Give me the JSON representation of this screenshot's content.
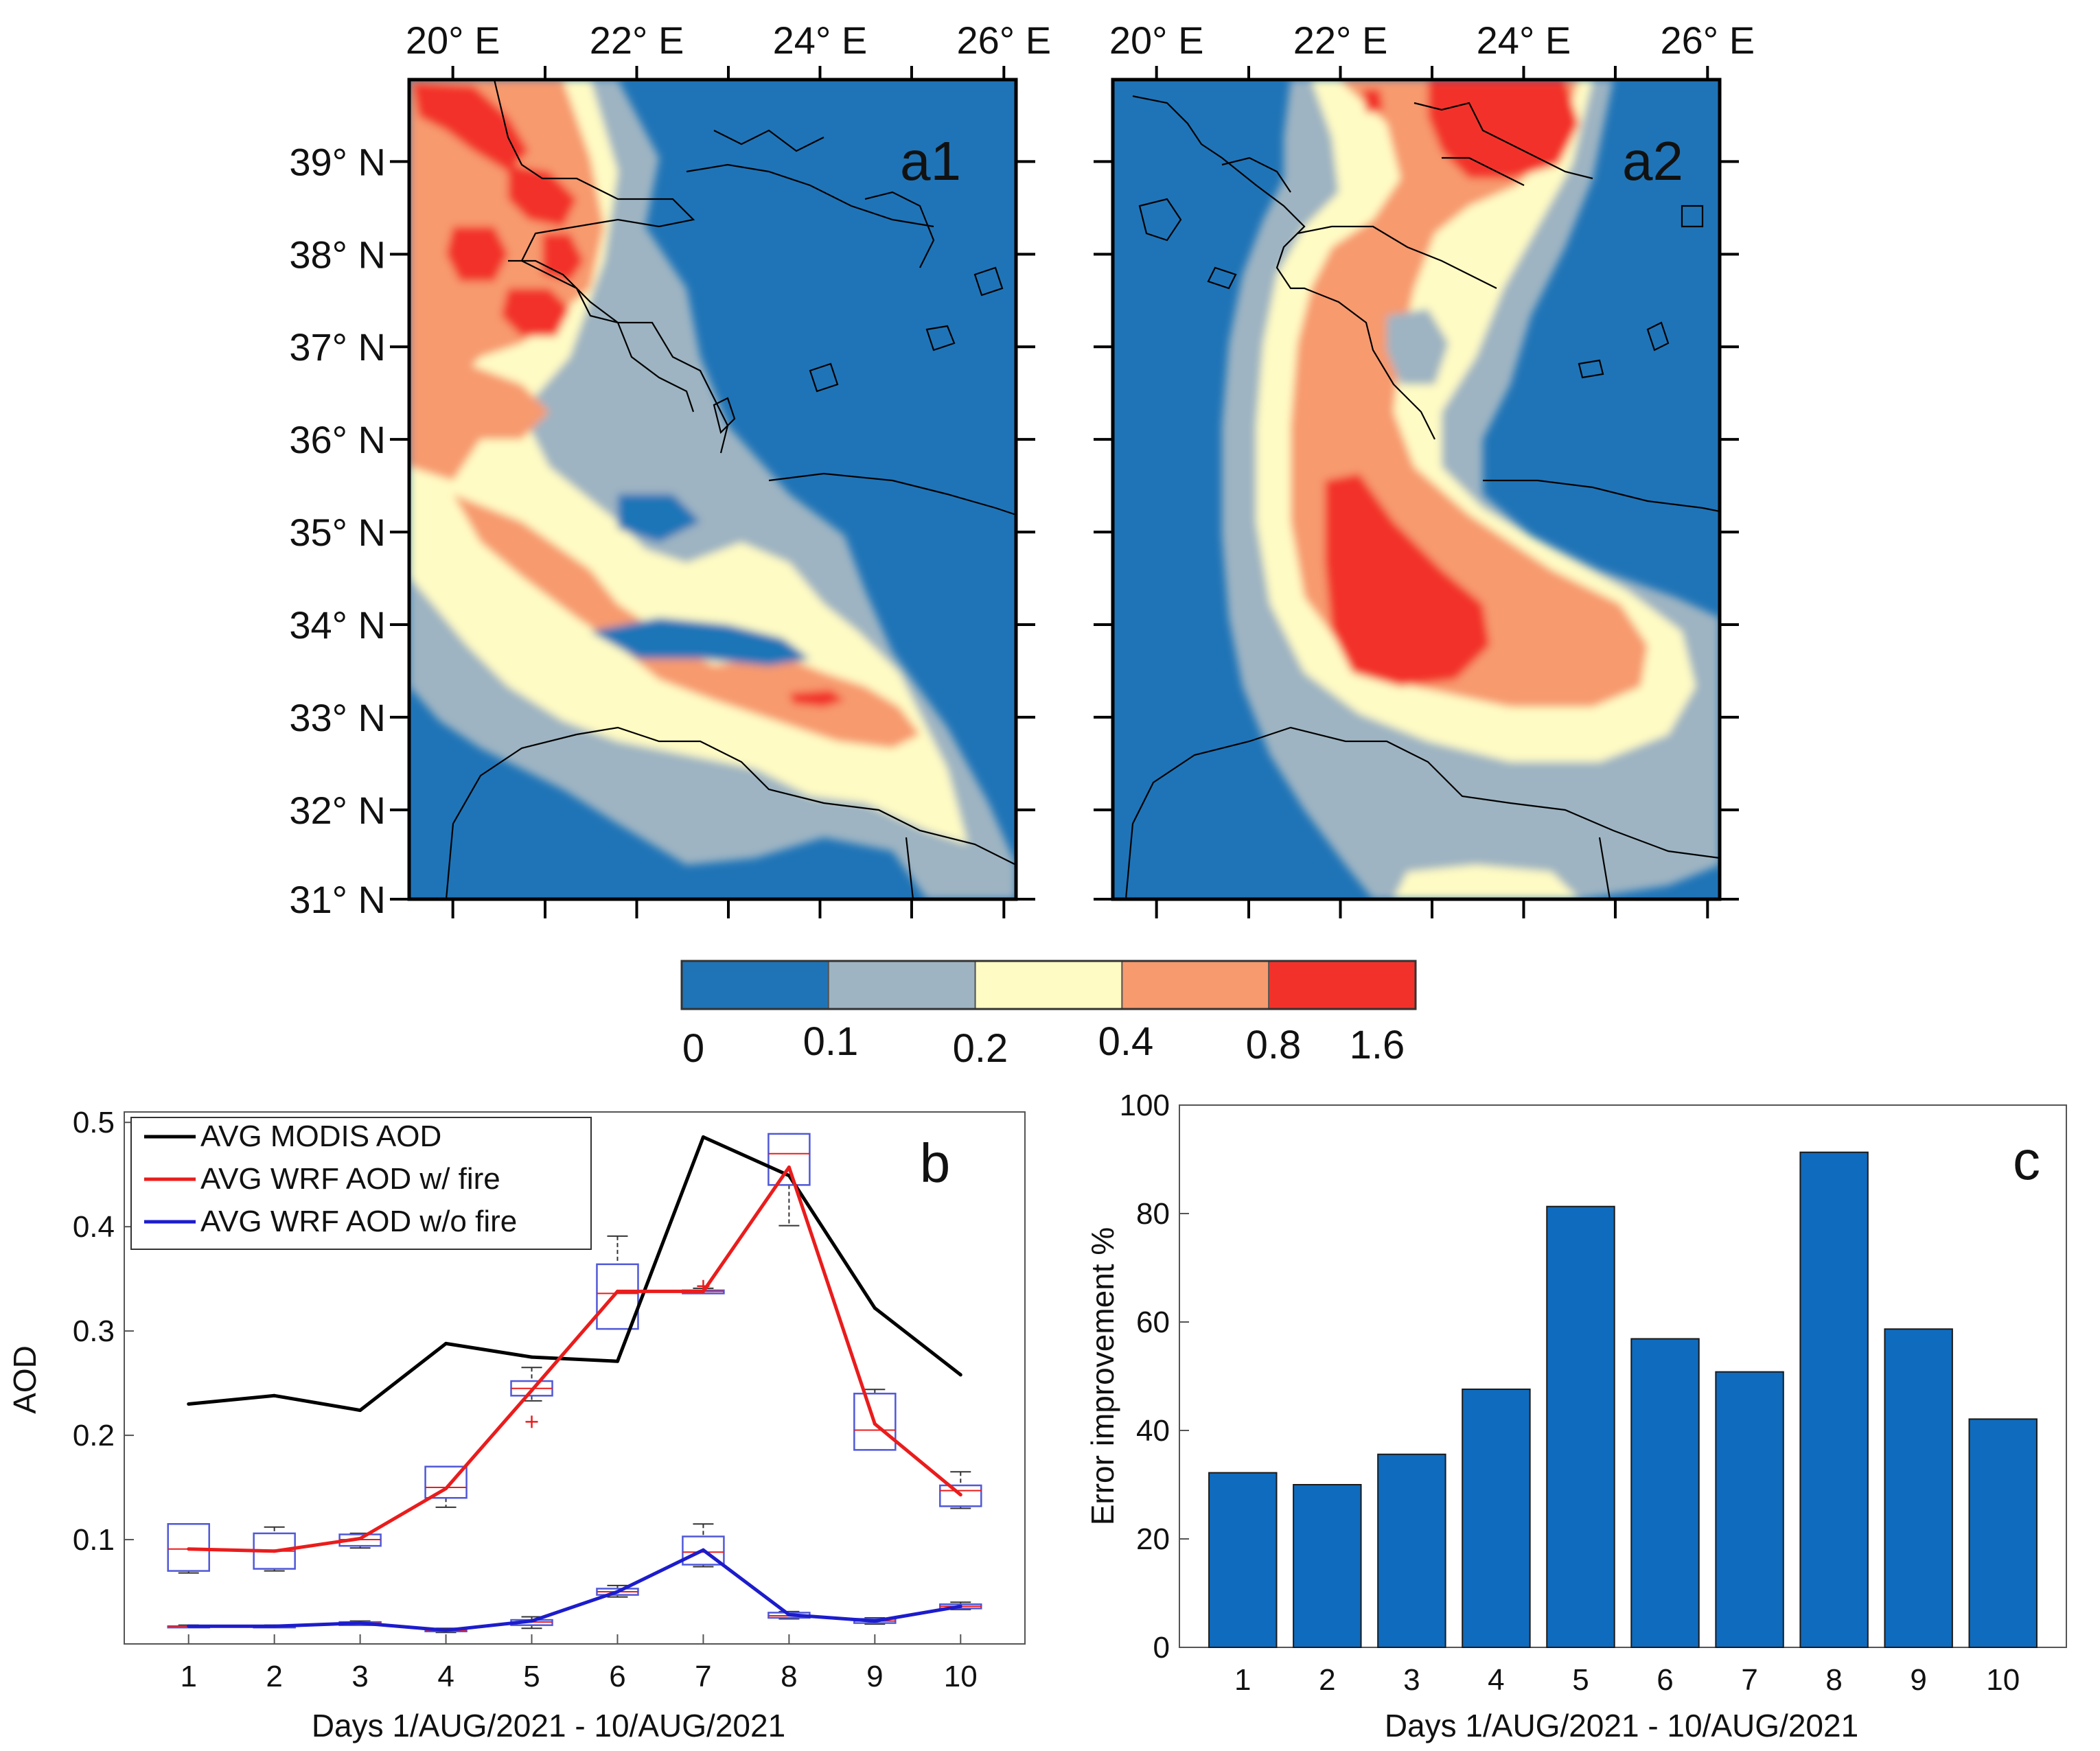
{
  "colors": {
    "bin0": "#1f74b7",
    "bin1": "#9eb4c2",
    "bin2": "#fffbc4",
    "bin3": "#f79a6e",
    "bin4": "#f2322a",
    "bar": "#0f6bbd",
    "modis": "#000000",
    "wrf_fire": "#ea1c1c",
    "wrf_nofire": "#1c1ccc",
    "box": "#4f58d8",
    "median": "#ea1c1c",
    "coast": "#000000"
  },
  "maps": {
    "lon_ticks": [
      "20° E",
      "22° E",
      "24° E",
      "26° E"
    ],
    "lat_ticks": [
      "39° N",
      "38° N",
      "37° N",
      "36° N",
      "35° N",
      "34° N",
      "33° N",
      "32° N",
      "31° N"
    ],
    "panels": [
      {
        "label": "a1",
        "subject": "MODIS AOD"
      },
      {
        "label": "a2",
        "subject": "WRF AOD w/ fire"
      }
    ]
  },
  "colorbar": {
    "tick_labels": [
      "0",
      "0.1",
      "0.2",
      "0.4",
      "0.8",
      "1.6"
    ],
    "bins": [
      [
        0,
        0.1
      ],
      [
        0.1,
        0.2
      ],
      [
        0.2,
        0.4
      ],
      [
        0.4,
        0.8
      ],
      [
        0.8,
        1.6
      ]
    ]
  },
  "chart_data": [
    {
      "id": "b",
      "panel_label": "b",
      "type": "line",
      "title": "",
      "xlabel": "Days 1/AUG/2021 - 10/AUG/2021",
      "ylabel": "AOD",
      "x": [
        1,
        2,
        3,
        4,
        5,
        6,
        7,
        8,
        9,
        10
      ],
      "xticks": [
        "1",
        "2",
        "3",
        "4",
        "5",
        "6",
        "7",
        "8",
        "9",
        "10"
      ],
      "ylim": [
        0,
        0.51
      ],
      "yticks": [
        "0.1",
        "0.2",
        "0.3",
        "0.4",
        "0.5"
      ],
      "legend_position": "top-left",
      "series": [
        {
          "name": "AVG MODIS AOD",
          "color_key": "modis",
          "values": [
            0.23,
            0.238,
            0.224,
            0.288,
            0.275,
            0.271,
            0.486,
            0.449,
            0.322,
            0.258
          ]
        },
        {
          "name": "AVG WRF AOD w/ fire",
          "color_key": "wrf_fire",
          "values": [
            0.091,
            0.089,
            0.101,
            0.149,
            0.243,
            0.338,
            0.338,
            0.457,
            0.211,
            0.143
          ]
        },
        {
          "name": "AVG WRF AOD w/o fire",
          "color_key": "wrf_nofire",
          "values": [
            0.017,
            0.017,
            0.02,
            0.013,
            0.022,
            0.05,
            0.09,
            0.028,
            0.022,
            0.036
          ]
        }
      ],
      "boxplots": [
        {
          "x": 1,
          "min": 0.068,
          "q1": 0.07,
          "median": 0.091,
          "q3": 0.115,
          "max": 0.115
        },
        {
          "x": 2,
          "min": 0.07,
          "q1": 0.072,
          "median": 0.089,
          "q3": 0.106,
          "max": 0.112
        },
        {
          "x": 3,
          "min": 0.092,
          "q1": 0.094,
          "median": 0.1,
          "q3": 0.105,
          "max": 0.106
        },
        {
          "x": 4,
          "min": 0.131,
          "q1": 0.14,
          "median": 0.15,
          "q3": 0.17,
          "max": 0.17
        },
        {
          "x": 5,
          "min": 0.233,
          "q1": 0.238,
          "median": 0.245,
          "q3": 0.252,
          "max": 0.265
        },
        {
          "x": 6,
          "min": 0.302,
          "q1": 0.302,
          "median": 0.336,
          "q3": 0.364,
          "max": 0.391
        },
        {
          "x": 7,
          "min": 0.336,
          "q1": 0.336,
          "median": 0.338,
          "q3": 0.339,
          "max": 0.341
        },
        {
          "x": 8,
          "min": 0.401,
          "q1": 0.44,
          "median": 0.47,
          "q3": 0.489,
          "max": 0.489
        },
        {
          "x": 9,
          "min": 0.186,
          "q1": 0.186,
          "median": 0.205,
          "q3": 0.24,
          "max": 0.244
        },
        {
          "x": 10,
          "min": 0.13,
          "q1": 0.132,
          "median": 0.147,
          "q3": 0.152,
          "max": 0.165
        },
        {
          "x": 1,
          "min": 0.016,
          "q1": 0.016,
          "median": 0.017,
          "q3": 0.017,
          "max": 0.018
        },
        {
          "x": 2,
          "min": 0.016,
          "q1": 0.016,
          "median": 0.017,
          "q3": 0.017,
          "max": 0.018
        },
        {
          "x": 3,
          "min": 0.018,
          "q1": 0.018,
          "median": 0.02,
          "q3": 0.021,
          "max": 0.022
        },
        {
          "x": 4,
          "min": 0.011,
          "q1": 0.012,
          "median": 0.013,
          "q3": 0.014,
          "max": 0.015
        },
        {
          "x": 5,
          "min": 0.015,
          "q1": 0.018,
          "median": 0.021,
          "q3": 0.023,
          "max": 0.026
        },
        {
          "x": 6,
          "min": 0.045,
          "q1": 0.047,
          "median": 0.05,
          "q3": 0.053,
          "max": 0.056
        },
        {
          "x": 7,
          "min": 0.074,
          "q1": 0.076,
          "median": 0.088,
          "q3": 0.103,
          "max": 0.115
        },
        {
          "x": 8,
          "min": 0.024,
          "q1": 0.025,
          "median": 0.027,
          "q3": 0.03,
          "max": 0.031
        },
        {
          "x": 9,
          "min": 0.019,
          "q1": 0.02,
          "median": 0.022,
          "q3": 0.024,
          "max": 0.025
        },
        {
          "x": 10,
          "min": 0.033,
          "q1": 0.034,
          "median": 0.036,
          "q3": 0.038,
          "max": 0.04
        }
      ],
      "outliers": [
        {
          "x": 5,
          "value": 0.213
        },
        {
          "x": 7,
          "value": 0.343
        }
      ]
    },
    {
      "id": "c",
      "panel_label": "c",
      "type": "bar",
      "title": "",
      "xlabel": "Days 1/AUG/2021 - 10/AUG/2021",
      "ylabel": "Error improvement %",
      "categories": [
        "1",
        "2",
        "3",
        "4",
        "5",
        "6",
        "7",
        "8",
        "9",
        "10"
      ],
      "values": [
        32.2,
        30,
        35.6,
        47.6,
        81.3,
        56.9,
        50.8,
        91.3,
        58.7,
        42.1
      ],
      "ylim": [
        0,
        100
      ],
      "yticks": [
        "0",
        "20",
        "40",
        "60",
        "80",
        "100"
      ]
    }
  ]
}
